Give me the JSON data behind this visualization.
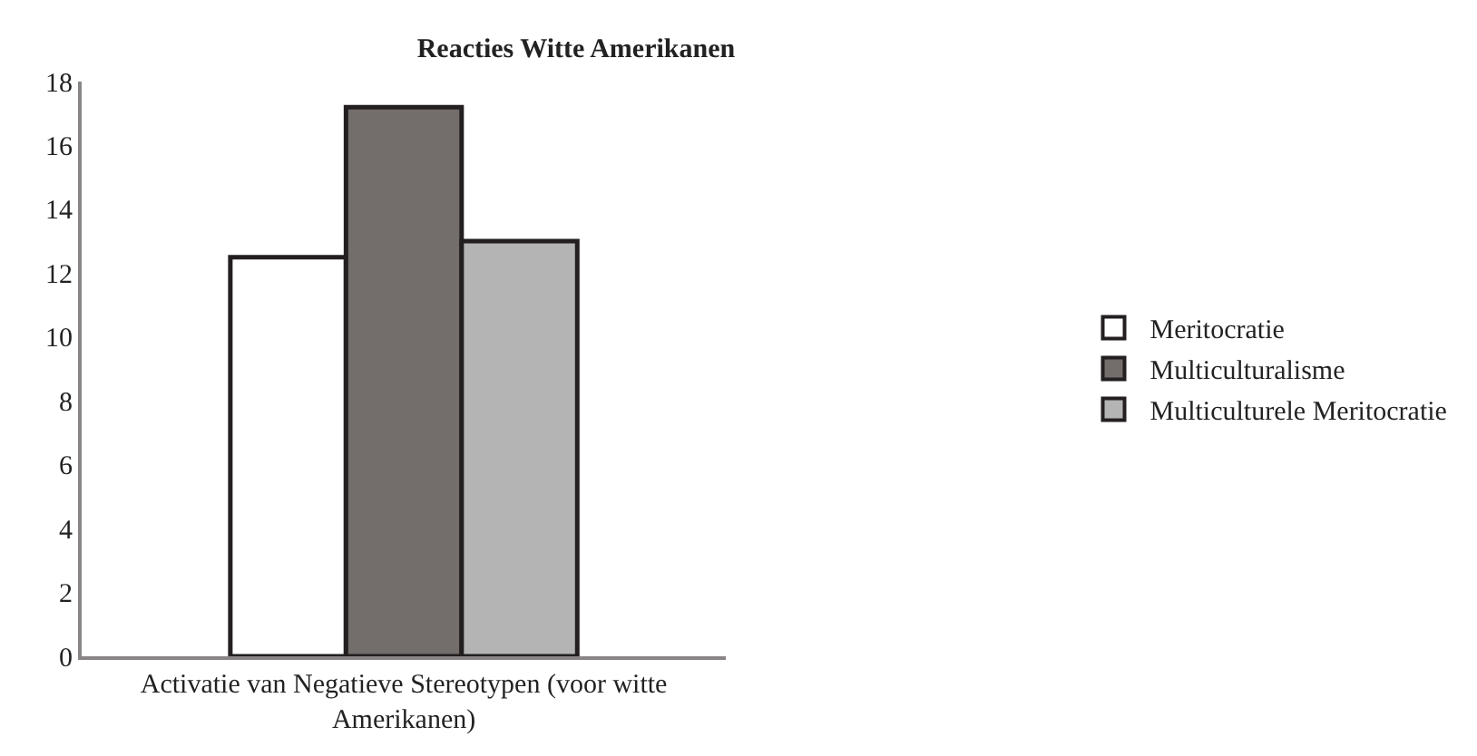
{
  "chart_data": {
    "type": "bar",
    "title": "Reacties Witte Amerikanen",
    "categories": [
      "Activatie van Negatieve Stereotypen (voor witte Amerikanen)"
    ],
    "series": [
      {
        "name": "Meritocratie",
        "color": "#ffffff",
        "values": [
          12.5
        ]
      },
      {
        "name": "Multiculturalisme",
        "color": "#736d6b",
        "values": [
          17.2
        ]
      },
      {
        "name": "Multiculturele Meritocratie",
        "color": "#b4b4b4",
        "values": [
          13.0
        ]
      }
    ],
    "ylim": [
      0,
      18
    ],
    "yticks": [
      0,
      2,
      4,
      6,
      8,
      10,
      12,
      14,
      16,
      18
    ],
    "legend": "right"
  }
}
